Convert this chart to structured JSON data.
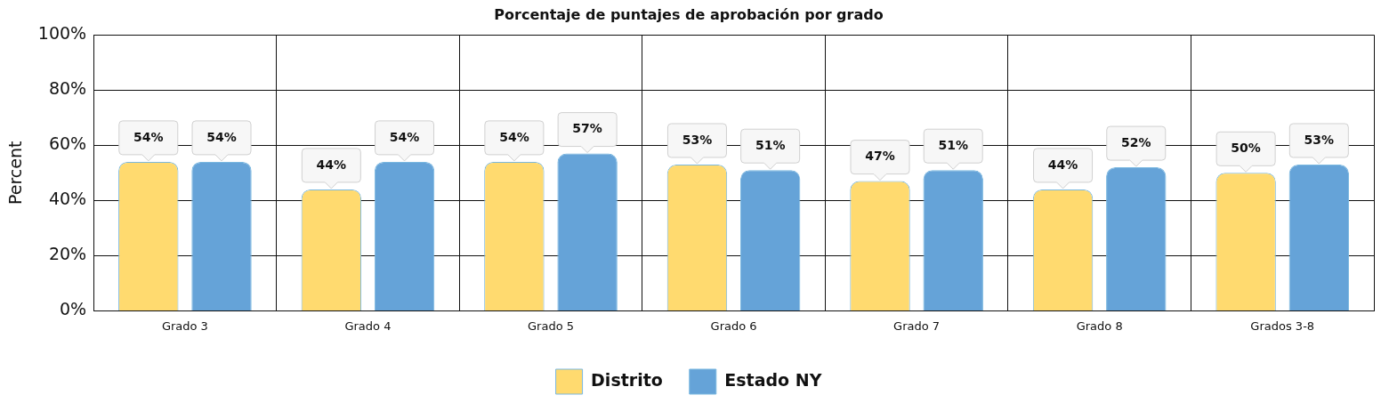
{
  "chart_data": {
    "type": "bar",
    "title": "Porcentaje de puntajes de aprobación por grado",
    "ylabel": "Percent",
    "categories": [
      "Grado 3",
      "Grado 4",
      "Grado 5",
      "Grado 6",
      "Grado 7",
      "Grado 8",
      "Grados 3-8"
    ],
    "series": [
      {
        "name": "Distrito",
        "color": "#ffda6f",
        "values": [
          54,
          44,
          54,
          53,
          47,
          44,
          50
        ],
        "value_labels": [
          "54%",
          "44%",
          "54%",
          "53%",
          "47%",
          "44%",
          "50%"
        ]
      },
      {
        "name": "Estado NY",
        "color": "#65a3d8",
        "values": [
          54,
          54,
          57,
          51,
          51,
          52,
          53
        ],
        "value_labels": [
          "54%",
          "54%",
          "57%",
          "51%",
          "51%",
          "52%",
          "53%"
        ]
      }
    ],
    "ylim": [
      0,
      100
    ],
    "yticks": [
      {
        "value": 0,
        "label": "0%"
      },
      {
        "value": 20,
        "label": "20%"
      },
      {
        "value": 40,
        "label": "40%"
      },
      {
        "value": 60,
        "label": "60%"
      },
      {
        "value": 80,
        "label": "80%"
      },
      {
        "value": 100,
        "label": "100%"
      }
    ],
    "grid": true,
    "legend": "bottom"
  }
}
